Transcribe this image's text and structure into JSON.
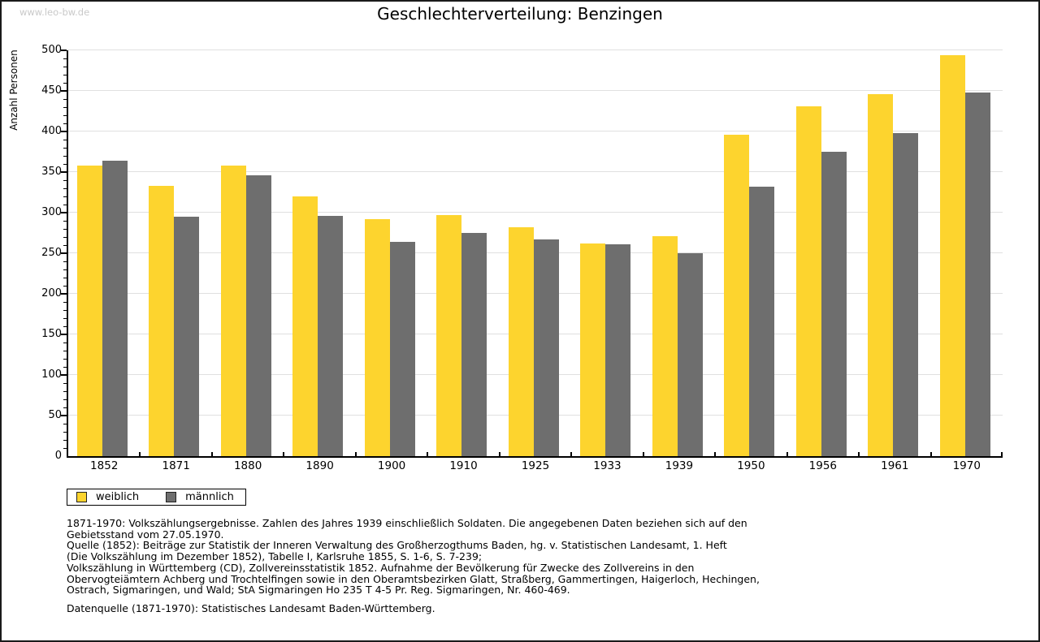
{
  "page": {
    "watermark": "www.leo-bw.de"
  },
  "chart_data": {
    "type": "bar",
    "title": "Geschlechterverteilung: Benzingen",
    "xlabel": "",
    "ylabel": "Anzahl Personen",
    "ylim": [
      0,
      500
    ],
    "ytick_step": 50,
    "yminor_step": 10,
    "grid": true,
    "legend_position": "bottom-left",
    "categories": [
      "1852",
      "1871",
      "1880",
      "1890",
      "1900",
      "1910",
      "1925",
      "1933",
      "1939",
      "1950",
      "1956",
      "1961",
      "1970"
    ],
    "series": [
      {
        "name": "weiblich",
        "color": "#FDD42E",
        "values": [
          358,
          333,
          358,
          320,
          292,
          297,
          282,
          262,
          271,
          396,
          431,
          446,
          494
        ]
      },
      {
        "name": "männlich",
        "color": "#6E6E6E",
        "values": [
          364,
          295,
          346,
          296,
          264,
          275,
          267,
          261,
          250,
          332,
          375,
          398,
          448
        ]
      }
    ]
  },
  "footnotes": {
    "lines": [
      "1871-1970: Volkszählungsergebnisse. Zahlen des Jahres 1939 einschließlich Soldaten. Die angegebenen Daten beziehen sich auf den",
      "Gebietsstand vom 27.05.1970.",
      "Quelle (1852): Beiträge zur Statistik der Inneren Verwaltung des Großherzogthums Baden, hg. v. Statistischen Landesamt, 1. Heft",
      "(Die Volkszählung im Dezember 1852), Tabelle I, Karlsruhe 1855, S. 1-6, S. 7-239;",
      "Volkszählung in Württemberg (CD), Zollvereinsstatistik 1852. Aufnahme der Bevölkerung für Zwecke des Zollvereins in den",
      "Obervogteiämtern Achberg und Trochtelfingen sowie in den Oberamtsbezirken Glatt, Straßberg, Gammertingen, Haigerloch, Hechingen,",
      "Ostrach, Sigmaringen, und Wald; StA Sigmaringen Ho 235 T 4-5 Pr. Reg. Sigmaringen, Nr. 460-469."
    ],
    "datasource": "Datenquelle (1871-1970): Statistisches Landesamt Baden-Württemberg."
  },
  "colors": {
    "grid": "#E0E0E0",
    "axis": "#000000",
    "watermark": "#C9C9C9",
    "background": "#FFFFFF"
  }
}
